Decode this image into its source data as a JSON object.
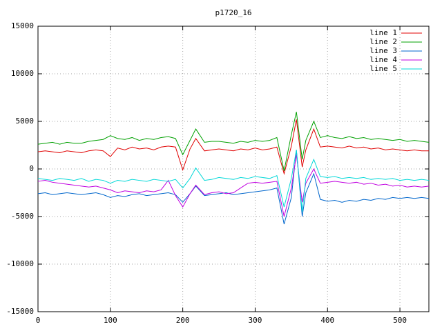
{
  "chart_data": {
    "type": "line",
    "title": "p1720_16",
    "x": [
      0,
      10,
      20,
      30,
      40,
      50,
      60,
      70,
      80,
      90,
      100,
      110,
      120,
      130,
      140,
      150,
      160,
      170,
      180,
      190,
      200,
      210,
      218,
      230,
      240,
      250,
      260,
      270,
      280,
      290,
      300,
      310,
      320,
      330,
      340,
      350,
      357,
      365,
      370,
      381,
      390,
      400,
      410,
      420,
      430,
      440,
      450,
      460,
      470,
      480,
      490,
      500,
      510,
      520,
      530,
      540
    ],
    "series": [
      {
        "name": "line 1",
        "color": "#e00000",
        "values": [
          1800,
          1900,
          1800,
          1700,
          1900,
          1800,
          1700,
          1900,
          2000,
          1900,
          1300,
          2200,
          2000,
          2300,
          2100,
          2200,
          2000,
          2300,
          2400,
          2300,
          -100,
          2100,
          3200,
          1900,
          2000,
          2100,
          2000,
          1900,
          2100,
          2000,
          2200,
          2000,
          2100,
          2300,
          -500,
          2400,
          5200,
          200,
          2000,
          4200,
          2300,
          2400,
          2300,
          2200,
          2400,
          2200,
          2300,
          2100,
          2200,
          2000,
          2100,
          2000,
          1900,
          2000,
          1900,
          1900
        ]
      },
      {
        "name": "line 2",
        "color": "#00a000",
        "values": [
          2600,
          2700,
          2800,
          2600,
          2800,
          2700,
          2700,
          2900,
          3000,
          3100,
          3500,
          3200,
          3100,
          3300,
          3000,
          3200,
          3100,
          3300,
          3400,
          3200,
          1500,
          3000,
          4200,
          2800,
          2900,
          2900,
          2800,
          2700,
          2900,
          2800,
          3000,
          2900,
          3000,
          3300,
          -200,
          3600,
          6000,
          1000,
          3000,
          5000,
          3300,
          3500,
          3300,
          3200,
          3400,
          3200,
          3300,
          3100,
          3200,
          3100,
          3000,
          3100,
          2900,
          3000,
          2900,
          2800
        ]
      },
      {
        "name": "line 3",
        "color": "#0066cc",
        "values": [
          -2600,
          -2500,
          -2700,
          -2600,
          -2500,
          -2600,
          -2700,
          -2600,
          -2500,
          -2700,
          -3000,
          -2800,
          -2900,
          -2700,
          -2600,
          -2800,
          -2700,
          -2600,
          -2500,
          -2700,
          -3500,
          -2600,
          -1800,
          -2800,
          -2700,
          -2600,
          -2500,
          -2700,
          -2600,
          -2500,
          -2400,
          -2300,
          -2200,
          -2000,
          -5800,
          -3000,
          2000,
          -5000,
          -2500,
          -500,
          -3200,
          -3400,
          -3300,
          -3500,
          -3300,
          -3400,
          -3200,
          -3300,
          -3100,
          -3200,
          -3000,
          -3100,
          -3000,
          -3100,
          -3000,
          -3100
        ]
      },
      {
        "name": "line 4",
        "color": "#c000e0",
        "values": [
          -1300,
          -1200,
          -1400,
          -1500,
          -1600,
          -1700,
          -1800,
          -1900,
          -1800,
          -2000,
          -2200,
          -2500,
          -2300,
          -2400,
          -2500,
          -2300,
          -2400,
          -2200,
          -1200,
          -2800,
          -4000,
          -2600,
          -1700,
          -2700,
          -2500,
          -2400,
          -2600,
          -2500,
          -2000,
          -1500,
          -1400,
          -1500,
          -1400,
          -1300,
          -5000,
          -2000,
          1500,
          -3500,
          -1500,
          0,
          -1500,
          -1400,
          -1300,
          -1400,
          -1500,
          -1400,
          -1600,
          -1500,
          -1700,
          -1600,
          -1800,
          -1700,
          -1900,
          -1800,
          -1900,
          -1800
        ]
      },
      {
        "name": "line 5",
        "color": "#00d8d8",
        "values": [
          -1000,
          -1100,
          -1200,
          -1000,
          -1100,
          -1200,
          -1000,
          -1300,
          -1100,
          -1200,
          -1500,
          -1200,
          -1300,
          -1100,
          -1200,
          -1300,
          -1100,
          -1200,
          -1300,
          -1100,
          -2000,
          -1000,
          100,
          -1200,
          -1100,
          -900,
          -1000,
          -1100,
          -900,
          -1000,
          -800,
          -900,
          -1000,
          -700,
          -4000,
          -1000,
          2000,
          -4500,
          -1000,
          1000,
          -800,
          -900,
          -800,
          -1000,
          -900,
          -1000,
          -900,
          -1100,
          -1000,
          -1100,
          -1000,
          -1200,
          -1100,
          -1200,
          -1100,
          -1200
        ]
      }
    ],
    "xlim": [
      0,
      540
    ],
    "xticks": [
      0,
      100,
      200,
      300,
      400,
      500
    ],
    "ylim": [
      -15000,
      15000
    ],
    "yticks": [
      -15000,
      -10000,
      -5000,
      0,
      5000,
      10000,
      15000
    ],
    "grid": true,
    "legend": "top-right"
  }
}
